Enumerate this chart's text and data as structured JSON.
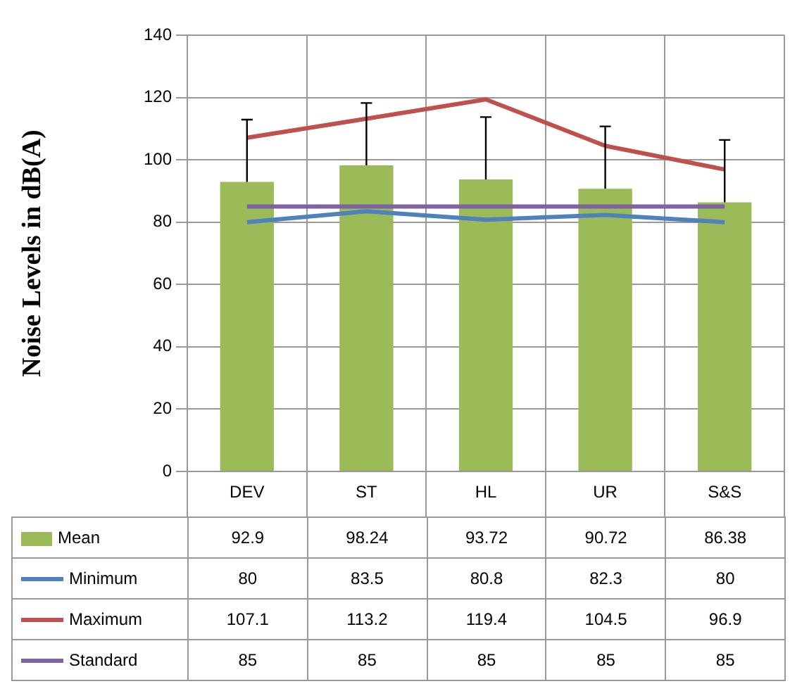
{
  "chart_data": {
    "type": "bar",
    "ylabel": "Noise Levels in dB(A)",
    "categories": [
      "DEV",
      "ST",
      "HL",
      "UR",
      "S&S"
    ],
    "series": [
      {
        "name": "Mean",
        "color": "#9bbb59",
        "values": [
          92.9,
          98.24,
          93.72,
          90.72,
          86.38
        ],
        "errors": [
          [
            92.9,
            112.9
          ],
          [
            98.24,
            118.24
          ],
          [
            93.72,
            113.72
          ],
          [
            90.72,
            110.72
          ],
          [
            86.38,
            106.38
          ]
        ]
      },
      {
        "name": "Minimum",
        "type": "line",
        "color": "#4f81bd",
        "values": [
          80,
          83.5,
          80.8,
          82.3,
          80
        ]
      },
      {
        "name": "Maximum",
        "type": "line",
        "color": "#c0504d",
        "values": [
          107.1,
          113.2,
          119.4,
          104.5,
          96.9
        ]
      },
      {
        "name": "Standard",
        "type": "line",
        "color": "#8064a2",
        "values": [
          85,
          85,
          85,
          85,
          85
        ]
      }
    ],
    "ylim": [
      0,
      140
    ],
    "yticks": [
      0,
      20,
      40,
      60,
      80,
      100,
      120,
      140
    ],
    "grid": true,
    "legend": "bottom",
    "data_labels": true,
    "marker": "none"
  }
}
